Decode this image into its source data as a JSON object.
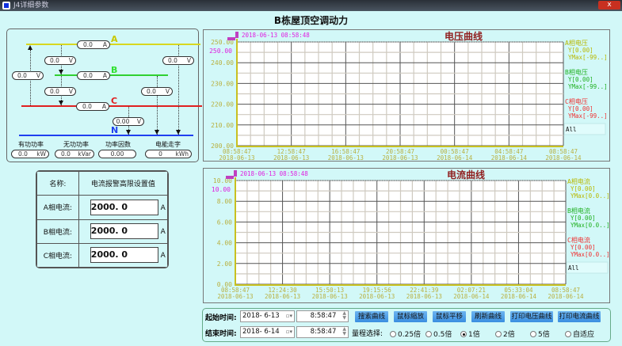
{
  "window": {
    "title": "J4详细参数",
    "close": "x"
  },
  "page_title": "B栋屋顶空调动力",
  "diagram": {
    "phases": [
      {
        "name": "A",
        "color": "#d8d820"
      },
      {
        "name": "B",
        "color": "#30d030"
      },
      {
        "name": "C",
        "color": "#e02020"
      },
      {
        "name": "N",
        "color": "#2040f0"
      }
    ],
    "currents": [
      {
        "value": "0.0",
        "unit": "A"
      },
      {
        "value": "0.0",
        "unit": "A"
      },
      {
        "value": "0.0",
        "unit": "A"
      }
    ],
    "voltages": [
      {
        "value": "0.0",
        "unit": "V"
      },
      {
        "value": "0.0",
        "unit": "V"
      },
      {
        "value": "0.0",
        "unit": "V"
      },
      {
        "value": "0.0",
        "unit": "V"
      },
      {
        "value": "0.0",
        "unit": "V"
      },
      {
        "value": "0.00",
        "unit": "V"
      }
    ],
    "meters": [
      {
        "label": "有功功率",
        "value": "0.0",
        "unit": "kW"
      },
      {
        "label": "无功功率",
        "value": "0.0",
        "unit": "kVar"
      },
      {
        "label": "功率因数",
        "value": "0.00",
        "unit": ""
      },
      {
        "label": "电能走字",
        "value": "0",
        "unit": "kWh"
      }
    ]
  },
  "alarm": {
    "header_name": "名称:",
    "header_value": "电流报警高限设置值",
    "rows": [
      {
        "label": "A相电流:",
        "value": "2000. 0",
        "unit": "A"
      },
      {
        "label": "B相电流:",
        "value": "2000. 0",
        "unit": "A"
      },
      {
        "label": "C相电流:",
        "value": "2000. 0",
        "unit": "A"
      }
    ]
  },
  "chart_data": [
    {
      "type": "line",
      "title": "电压曲线",
      "cursor_label": "2018-06-13 08:58:48",
      "cursor_value": "250.00",
      "ylim": [
        200,
        250
      ],
      "yticks": [
        "200.00",
        "210.00",
        "220.00",
        "230.00",
        "240.00",
        "250.00"
      ],
      "xticks": [
        [
          "08:58:47",
          "2018-06-13"
        ],
        [
          "12:58:47",
          "2018-06-13"
        ],
        [
          "16:58:47",
          "2018-06-13"
        ],
        [
          "20:58:47",
          "2018-06-13"
        ],
        [
          "00:58:47",
          "2018-06-14"
        ],
        [
          "04:58:47",
          "2018-06-14"
        ],
        [
          "08:58:47",
          "2018-06-14"
        ]
      ],
      "grid": true,
      "legend": [
        {
          "name": "A相电压",
          "y": "Y[0.00]",
          "ymax": "YMax[-99..]",
          "color": "#b8b800"
        },
        {
          "name": "B相电压",
          "y": "Y[0.00]",
          "ymax": "YMax[-99..]",
          "color": "#20b020"
        },
        {
          "name": "C相电压",
          "y": "Y[0.00]",
          "ymax": "YMax[-99..]",
          "color": "#f03030"
        }
      ],
      "all_label": "All",
      "series": []
    },
    {
      "type": "line",
      "title": "电流曲线",
      "cursor_label": "2018-06-13 08:58:48",
      "cursor_value": "10.00",
      "ylim": [
        0,
        10
      ],
      "yticks": [
        "0.00",
        "2.00",
        "4.00",
        "6.00",
        "8.00",
        "10.00"
      ],
      "xticks": [
        [
          "08:58:47",
          "2018-06-13"
        ],
        [
          "12:24:30",
          "2018-06-13"
        ],
        [
          "15:50:13",
          "2018-06-13"
        ],
        [
          "19:15:56",
          "2018-06-13"
        ],
        [
          "22:41:39",
          "2018-06-13"
        ],
        [
          "02:07:21",
          "2018-06-14"
        ],
        [
          "05:33:04",
          "2018-06-14"
        ],
        [
          "08:58:47",
          "2018-06-14"
        ]
      ],
      "grid": true,
      "legend": [
        {
          "name": "A相电流",
          "y": "Y[0.00]",
          "ymax": "YMax[0.0..]",
          "color": "#b8b800"
        },
        {
          "name": "B相电流",
          "y": "Y[0.00]",
          "ymax": "YMax[0.0..]",
          "color": "#20b020"
        },
        {
          "name": "C相电流",
          "y": "Y[0.00]",
          "ymax": "YMax[0.0..]",
          "color": "#f03030"
        }
      ],
      "all_label": "All",
      "series": []
    }
  ],
  "controls": {
    "start_label": "起始时间:",
    "start_date": "2018- 6-13",
    "start_time": "8:58:47",
    "end_label": "结束时间:",
    "end_date": "2018- 6-14",
    "end_time": "8:58:47",
    "buttons": [
      "搜索曲线",
      "鼠标缩放",
      "鼠标平移",
      "刷新曲线",
      "打印电压曲线",
      "打印电流曲线"
    ],
    "range_label": "量程选择:",
    "ranges": [
      "0.25倍",
      "0.5倍",
      "1倍",
      "2倍",
      "5倍",
      "自适应"
    ],
    "selected_range": "1倍"
  }
}
